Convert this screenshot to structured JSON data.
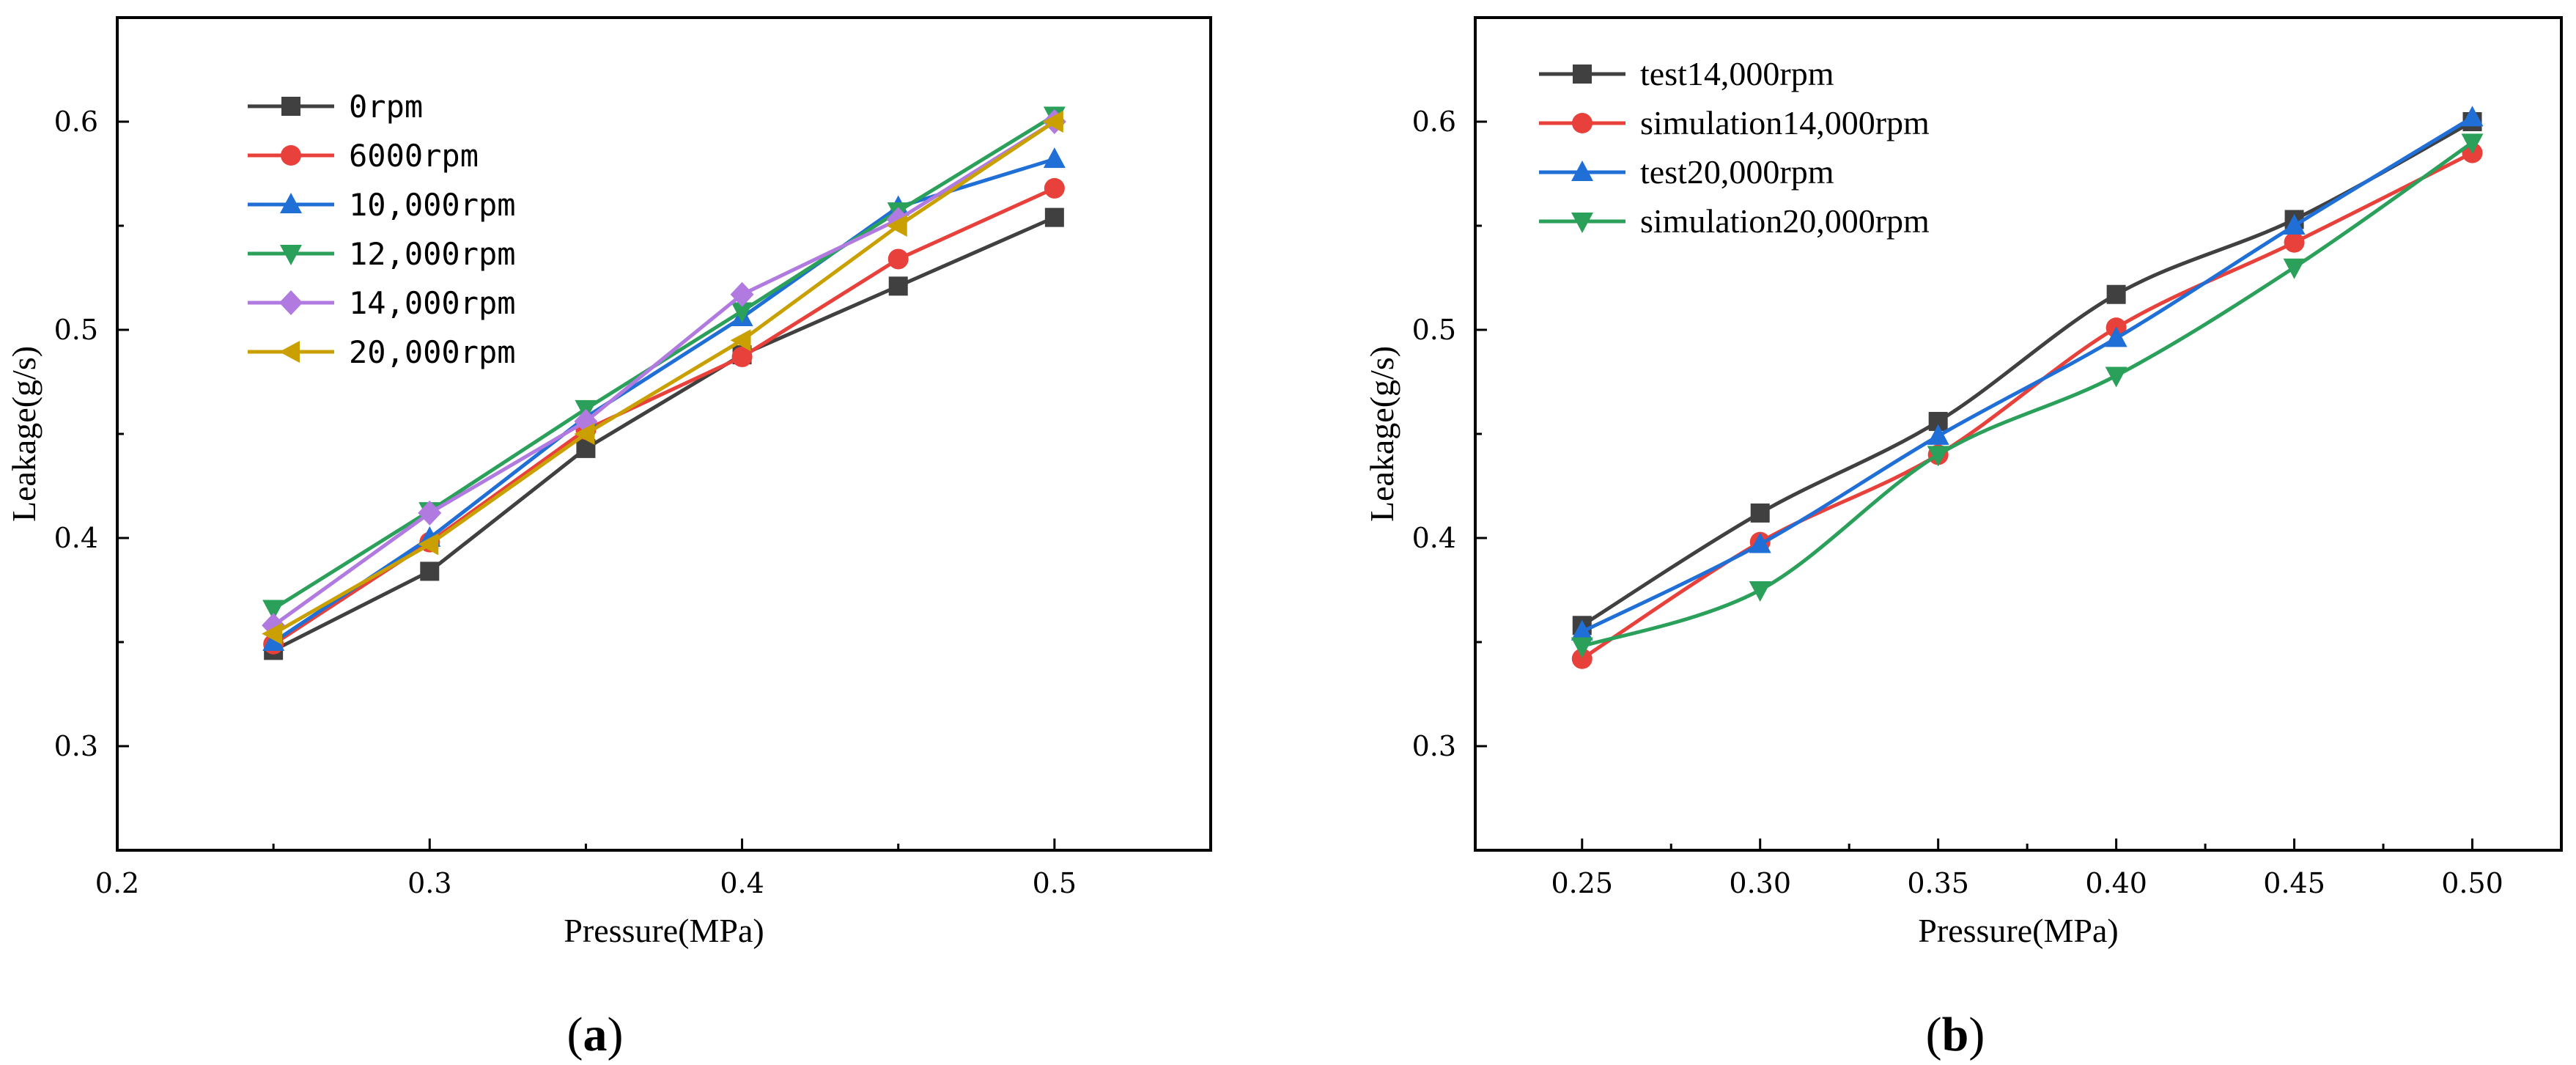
{
  "chart_data": [
    {
      "type": "line",
      "panel_label": "(a)",
      "panel_letter": "a",
      "xlabel": "Pressure(MPa)",
      "ylabel": "Leakage(g/s)",
      "xlim": [
        0.2,
        0.55
      ],
      "ylim": [
        0.25,
        0.65
      ],
      "xticks": [
        0.2,
        0.3,
        0.4,
        0.5
      ],
      "xtick_labels": [
        "0.2",
        "0.3",
        "0.4",
        "0.5"
      ],
      "yticks": [
        0.3,
        0.4,
        0.5,
        0.6
      ],
      "ytick_labels": [
        "0.3",
        "0.4",
        "0.5",
        "0.6"
      ],
      "x": [
        0.25,
        0.3,
        0.35,
        0.4,
        0.45,
        0.5
      ],
      "legend_position": "top-left",
      "series": [
        {
          "name": "0rpm",
          "color": "#404040",
          "marker": "square",
          "values": [
            0.346,
            0.384,
            0.443,
            0.488,
            0.521,
            0.554
          ]
        },
        {
          "name": "6000rpm",
          "color": "#e8403a",
          "marker": "circle",
          "values": [
            0.349,
            0.398,
            0.452,
            0.487,
            0.534,
            0.568
          ]
        },
        {
          "name": "10,000rpm",
          "color": "#1f6fd6",
          "marker": "triangle-up",
          "values": [
            0.35,
            0.4,
            0.458,
            0.506,
            0.559,
            0.582
          ]
        },
        {
          "name": "12,000rpm",
          "color": "#2aa05a",
          "marker": "triangle-down",
          "values": [
            0.366,
            0.413,
            0.462,
            0.509,
            0.557,
            0.603
          ]
        },
        {
          "name": "14,000rpm",
          "color": "#b07ae0",
          "marker": "diamond",
          "values": [
            0.358,
            0.412,
            0.456,
            0.517,
            0.553,
            0.6
          ]
        },
        {
          "name": "20,000rpm",
          "color": "#c9a000",
          "marker": "triangle-left",
          "values": [
            0.354,
            0.397,
            0.45,
            0.495,
            0.55,
            0.6
          ]
        }
      ]
    },
    {
      "type": "line",
      "panel_label": "(b)",
      "panel_letter": "b",
      "xlabel": "Pressure(MPa)",
      "ylabel": "Leakage(g/s)",
      "xlim": [
        0.22,
        0.525
      ],
      "ylim": [
        0.25,
        0.65
      ],
      "xticks": [
        0.25,
        0.3,
        0.35,
        0.4,
        0.45,
        0.5
      ],
      "xtick_labels": [
        "0.25",
        "0.30",
        "0.35",
        "0.40",
        "0.45",
        "0.50"
      ],
      "yticks": [
        0.3,
        0.4,
        0.5,
        0.6
      ],
      "ytick_labels": [
        "0.3",
        "0.4",
        "0.5",
        "0.6"
      ],
      "x": [
        0.25,
        0.3,
        0.35,
        0.4,
        0.45,
        0.5
      ],
      "legend_position": "top-left",
      "series": [
        {
          "name": "test14,000rpm",
          "color": "#404040",
          "marker": "square",
          "values": [
            0.358,
            0.412,
            0.456,
            0.517,
            0.553,
            0.6
          ]
        },
        {
          "name": "simulation14,000rpm",
          "color": "#e8403a",
          "marker": "circle",
          "values": [
            0.342,
            0.398,
            0.44,
            0.501,
            0.542,
            0.585
          ]
        },
        {
          "name": "test20,000rpm",
          "color": "#1f6fd6",
          "marker": "triangle-up",
          "values": [
            0.355,
            0.397,
            0.449,
            0.496,
            0.55,
            0.602
          ]
        },
        {
          "name": "simulation20,000rpm",
          "color": "#2aa05a",
          "marker": "triangle-down",
          "values": [
            0.348,
            0.375,
            0.44,
            0.478,
            0.53,
            0.59
          ]
        }
      ]
    }
  ]
}
